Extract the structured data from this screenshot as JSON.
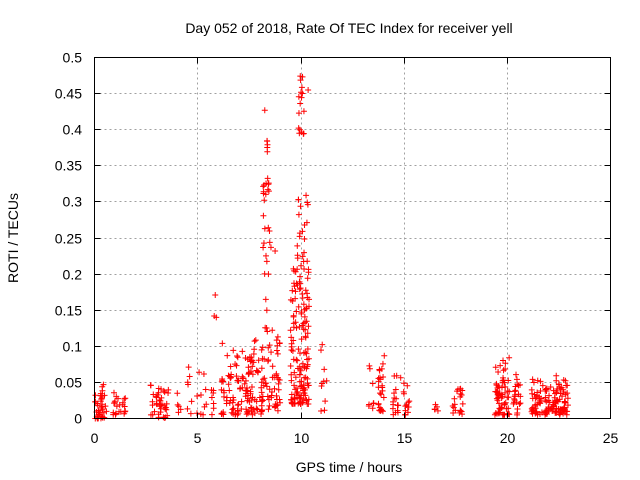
{
  "chart_data": {
    "type": "scatter",
    "title": "Day 052 of 2018, Rate Of TEC Index for receiver yell",
    "xlabel": "GPS time / hours",
    "ylabel": "ROTI / TECUs",
    "xlim": [
      0,
      25
    ],
    "ylim": [
      0,
      0.5
    ],
    "xticks": [
      0,
      5,
      10,
      15,
      20,
      25
    ],
    "yticks": [
      0,
      0.05,
      0.1,
      0.15,
      0.2,
      0.25,
      0.3,
      0.35,
      0.4,
      0.45,
      0.5
    ],
    "xtick_labels": [
      "0",
      "5",
      "10",
      "15",
      "20",
      "25"
    ],
    "ytick_labels": [
      "0",
      "0.05",
      "0.1",
      "0.15",
      "0.2",
      "0.25",
      "0.3",
      "0.35",
      "0.4",
      "0.45",
      "0.5"
    ],
    "grid": true,
    "marker": "+",
    "color": "#ff0000",
    "clusters": [
      {
        "x": 0.05,
        "x_spread": 0.35,
        "y_min": 0.0,
        "y_max": 0.035,
        "count": 40
      },
      {
        "x": 0.45,
        "x_spread": 0.15,
        "y_min": 0.0,
        "y_max": 0.052,
        "count": 14
      },
      {
        "x": 1.2,
        "x_spread": 0.3,
        "y_min": 0.005,
        "y_max": 0.038,
        "count": 22
      },
      {
        "x": 2.95,
        "x_spread": 0.3,
        "y_min": 0.005,
        "y_max": 0.048,
        "count": 22
      },
      {
        "x": 3.35,
        "x_spread": 0.25,
        "y_min": 0.0,
        "y_max": 0.045,
        "count": 18
      },
      {
        "x": 4.1,
        "x_spread": 0.1,
        "y_min": 0.008,
        "y_max": 0.04,
        "count": 5
      },
      {
        "x": 4.6,
        "x_spread": 0.15,
        "y_min": 0.005,
        "y_max": 0.072,
        "count": 7
      },
      {
        "x": 5.2,
        "x_spread": 0.25,
        "y_min": 0.005,
        "y_max": 0.065,
        "count": 10
      },
      {
        "x": 5.8,
        "x_spread": 0.15,
        "y_min": 0.005,
        "y_max": 0.04,
        "count": 7
      },
      {
        "x": 6.55,
        "x_spread": 0.4,
        "y_min": 0.005,
        "y_max": 0.105,
        "count": 40
      },
      {
        "x": 7.25,
        "x_spread": 0.4,
        "y_min": 0.005,
        "y_max": 0.1,
        "count": 55
      },
      {
        "x": 7.9,
        "x_spread": 0.35,
        "y_min": 0.005,
        "y_max": 0.115,
        "count": 40
      },
      {
        "x": 8.55,
        "x_spread": 0.45,
        "y_min": 0.01,
        "y_max": 0.14,
        "count": 55
      },
      {
        "x": 8.35,
        "x_spread": 0.2,
        "y_min": 0.2,
        "y_max": 0.385,
        "count": 26
      },
      {
        "x": 9.95,
        "x_spread": 0.45,
        "y_min": 0.02,
        "y_max": 0.21,
        "count": 150
      },
      {
        "x": 10.05,
        "x_spread": 0.3,
        "y_min": 0.21,
        "y_max": 0.31,
        "count": 20
      },
      {
        "x": 10.0,
        "x_spread": 0.15,
        "y_min": 0.39,
        "y_max": 0.475,
        "count": 16
      },
      {
        "x": 11.1,
        "x_spread": 0.15,
        "y_min": 0.01,
        "y_max": 0.118,
        "count": 10
      },
      {
        "x": 13.4,
        "x_spread": 0.15,
        "y_min": 0.01,
        "y_max": 0.075,
        "count": 8
      },
      {
        "x": 13.9,
        "x_spread": 0.15,
        "y_min": 0.01,
        "y_max": 0.093,
        "count": 26
      },
      {
        "x": 14.65,
        "x_spread": 0.2,
        "y_min": 0.005,
        "y_max": 0.062,
        "count": 16
      },
      {
        "x": 15.1,
        "x_spread": 0.15,
        "y_min": 0.005,
        "y_max": 0.05,
        "count": 14
      },
      {
        "x": 16.55,
        "x_spread": 0.1,
        "y_min": 0.008,
        "y_max": 0.03,
        "count": 5
      },
      {
        "x": 17.6,
        "x_spread": 0.25,
        "y_min": 0.005,
        "y_max": 0.05,
        "count": 20
      },
      {
        "x": 19.75,
        "x_spread": 0.35,
        "y_min": 0.005,
        "y_max": 0.09,
        "count": 65
      },
      {
        "x": 20.45,
        "x_spread": 0.2,
        "y_min": 0.005,
        "y_max": 0.062,
        "count": 22
      },
      {
        "x": 21.45,
        "x_spread": 0.3,
        "y_min": 0.005,
        "y_max": 0.057,
        "count": 38
      },
      {
        "x": 22.1,
        "x_spread": 0.3,
        "y_min": 0.005,
        "y_max": 0.045,
        "count": 38
      },
      {
        "x": 22.65,
        "x_spread": 0.35,
        "y_min": 0.005,
        "y_max": 0.06,
        "count": 55
      }
    ],
    "outliers": [
      {
        "x": 5.85,
        "y": 0.171
      },
      {
        "x": 5.8,
        "y": 0.142
      },
      {
        "x": 5.9,
        "y": 0.14
      },
      {
        "x": 8.25,
        "y": 0.427
      },
      {
        "x": 8.3,
        "y": 0.165
      },
      {
        "x": 8.35,
        "y": 0.15
      },
      {
        "x": 8.1,
        "y": 0.095
      },
      {
        "x": 8.55,
        "y": 0.237
      },
      {
        "x": 8.75,
        "y": 0.232
      },
      {
        "x": 9.95,
        "y": 0.4
      },
      {
        "x": 10.35,
        "y": 0.455
      },
      {
        "x": 10.25,
        "y": 0.309
      },
      {
        "x": 8.4,
        "y": 0.317
      },
      {
        "x": 8.45,
        "y": 0.315
      }
    ]
  }
}
